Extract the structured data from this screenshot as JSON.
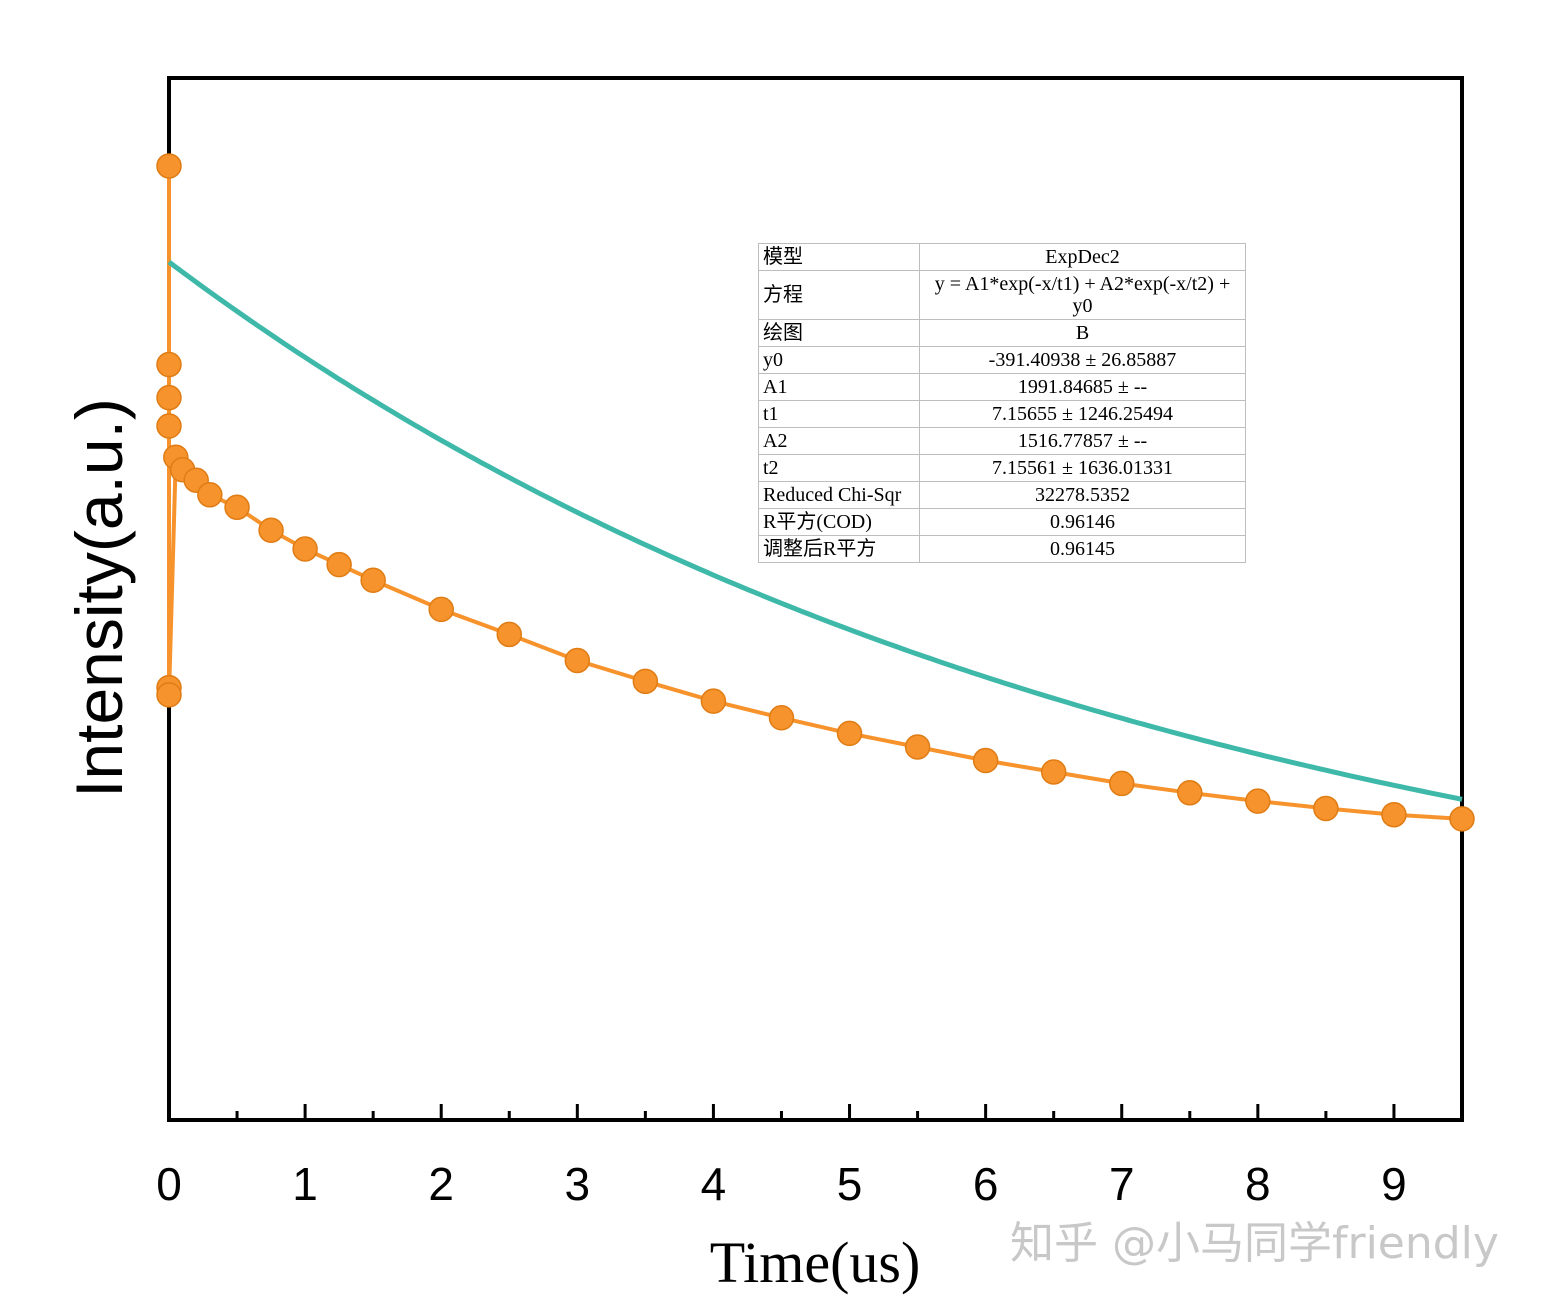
{
  "chart_data": {
    "type": "scatter",
    "xlabel": "Time(us)",
    "ylabel": "Intensity(a.u.)",
    "xlim": [
      0,
      9.5
    ],
    "ylim": [
      -1000,
      4000
    ],
    "x_ticks": [
      0,
      1,
      2,
      3,
      4,
      5,
      6,
      7,
      8,
      9
    ],
    "x_tick_labels": [
      "0",
      "1",
      "2",
      "3",
      "4",
      "5",
      "6",
      "7",
      "8",
      "9"
    ],
    "y_tick_labels_shown": false,
    "grid": false,
    "series": [
      {
        "kind": "scatter-with-line",
        "color": "#f7932c",
        "points": [
          [
            0.0,
            3578
          ],
          [
            0.0,
            2625
          ],
          [
            0.0,
            2466
          ],
          [
            0.0,
            2330
          ],
          [
            0.0,
            1075
          ],
          [
            0.0,
            1040
          ],
          [
            0.05,
            2180
          ],
          [
            0.1,
            2120
          ],
          [
            0.2,
            2070
          ],
          [
            0.3,
            2000
          ],
          [
            0.5,
            1940
          ],
          [
            0.75,
            1830
          ],
          [
            1.0,
            1740
          ],
          [
            1.25,
            1665
          ],
          [
            1.5,
            1590
          ],
          [
            2.0,
            1450
          ],
          [
            2.5,
            1330
          ],
          [
            3.0,
            1205
          ],
          [
            3.5,
            1105
          ],
          [
            4.0,
            1010
          ],
          [
            4.5,
            930
          ],
          [
            5.0,
            855
          ],
          [
            5.5,
            790
          ],
          [
            6.0,
            725
          ],
          [
            6.5,
            670
          ],
          [
            7.0,
            615
          ],
          [
            7.5,
            570
          ],
          [
            8.0,
            530
          ],
          [
            8.5,
            495
          ],
          [
            9.0,
            465
          ],
          [
            9.5,
            445
          ]
        ]
      },
      {
        "kind": "fit-line",
        "color": "#3eb8a8",
        "model": "ExpDec2",
        "y0": -391.40938,
        "A1": 1991.84685,
        "t1": 7.15655,
        "A2": 1516.77857,
        "t2": 7.15561
      }
    ]
  },
  "fit_table": {
    "rows": [
      {
        "key": "模型",
        "value": "ExpDec2"
      },
      {
        "key": "方程",
        "value": "y = A1*exp(-x/t1) + A2*exp(-x/t2) + y0"
      },
      {
        "key": "绘图",
        "value": "B"
      },
      {
        "key": "y0",
        "value": "-391.40938 ± 26.85887"
      },
      {
        "key": "A1",
        "value": "1991.84685 ± --"
      },
      {
        "key": "t1",
        "value": "7.15655 ± 1246.25494"
      },
      {
        "key": "A2",
        "value": "1516.77857 ± --"
      },
      {
        "key": "t2",
        "value": "7.15561 ± 1636.01331"
      },
      {
        "key": "Reduced Chi-Sqr",
        "value": "32278.5352"
      },
      {
        "key": "R平方(COD)",
        "value": "0.96146"
      },
      {
        "key": "调整后R平方",
        "value": "0.96145"
      }
    ]
  },
  "watermark": "知乎 @小马同学friendly"
}
